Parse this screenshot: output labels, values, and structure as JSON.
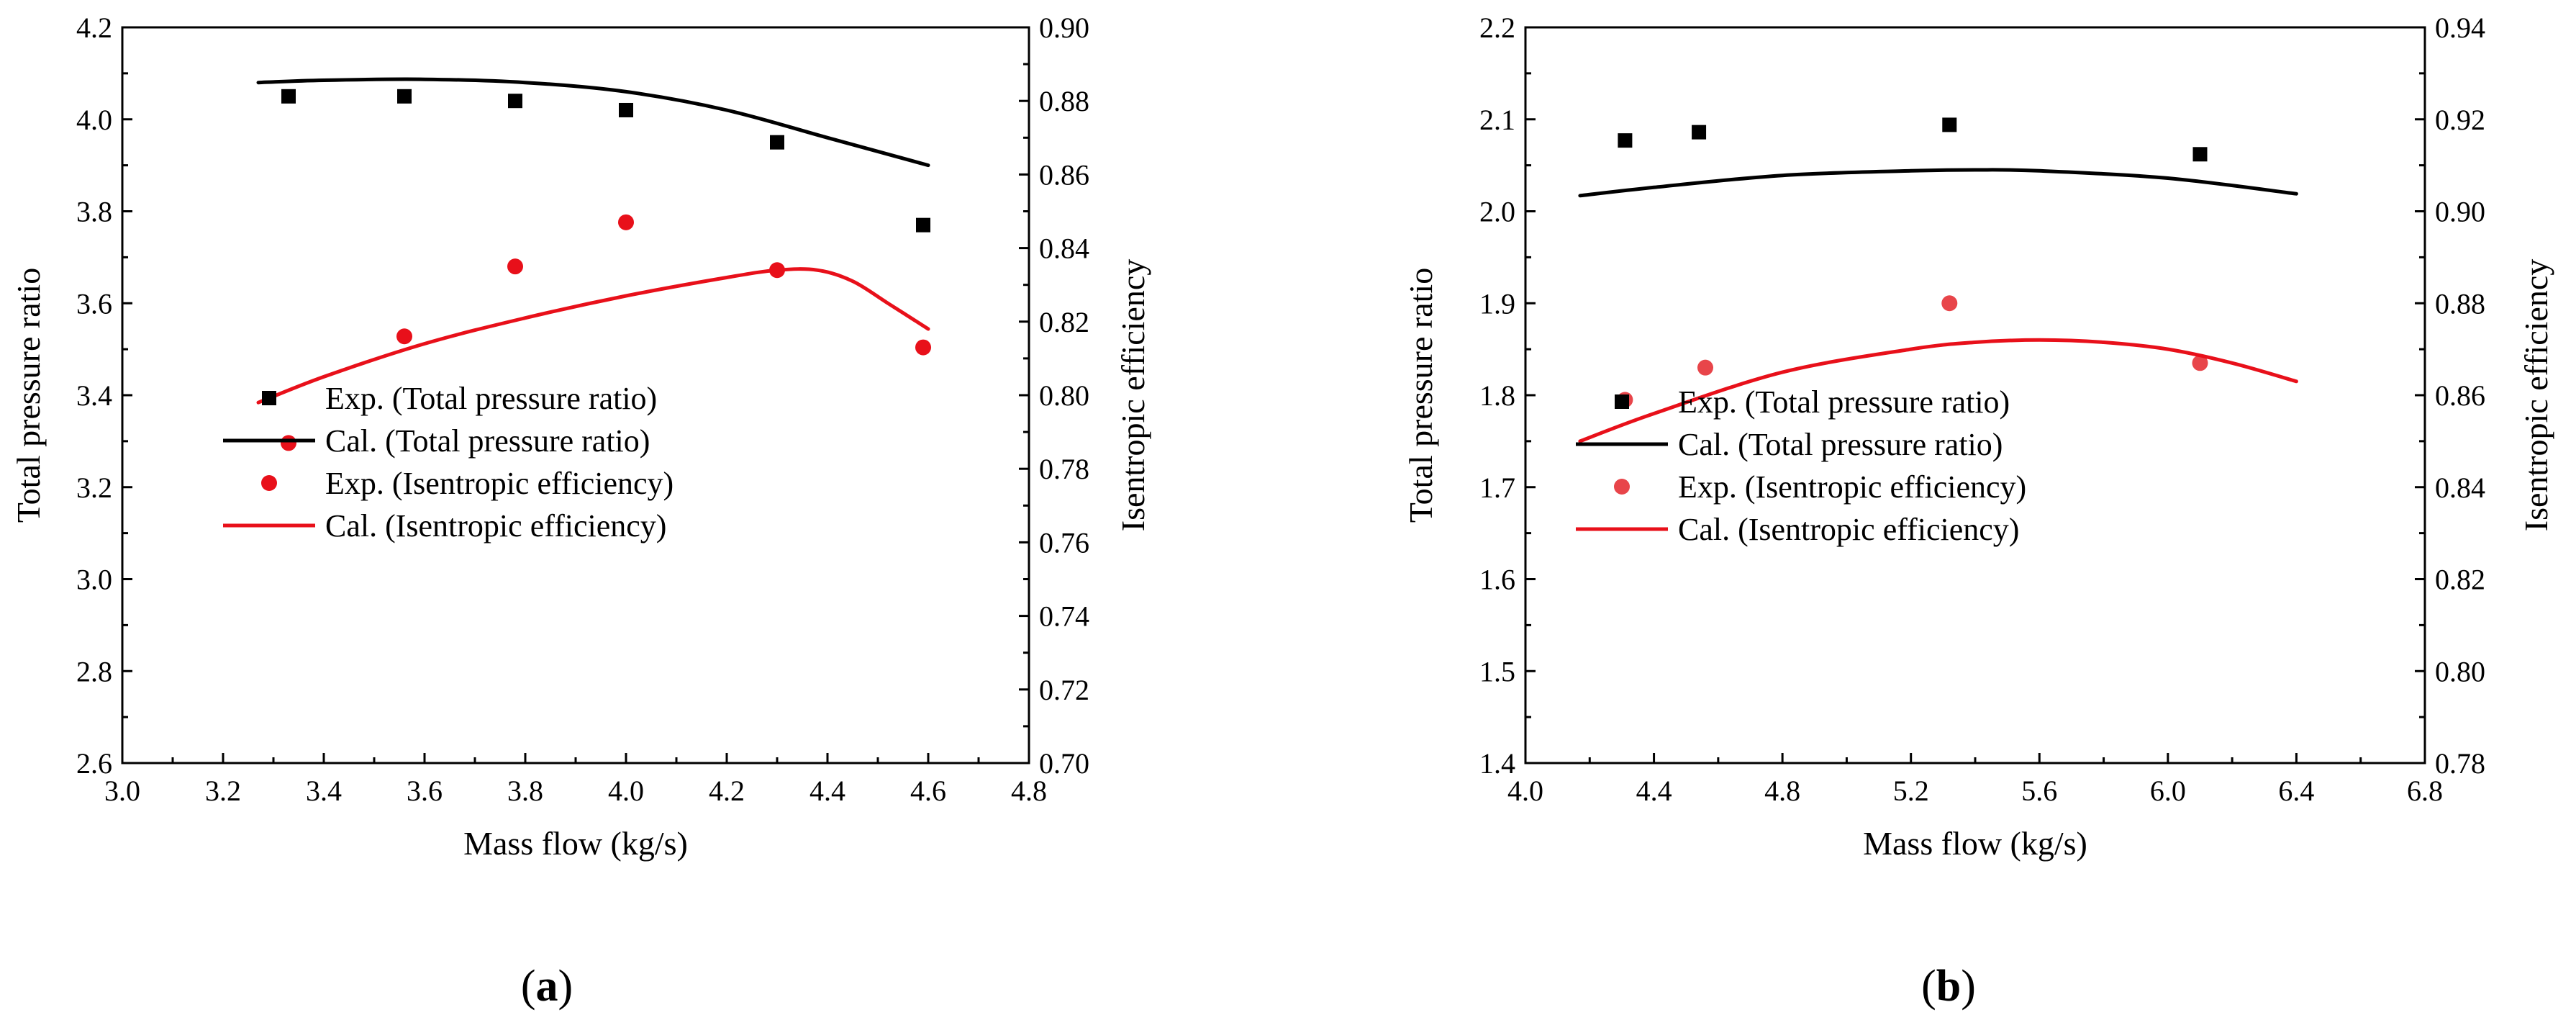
{
  "chart_data": [
    {
      "type": "line",
      "panel_label": "(a)",
      "xlabel": "Mass flow (kg/s)",
      "ylabel_left": "Total pressure ratio",
      "ylabel_right": "Isentropic efficiency",
      "xlim": [
        3.0,
        4.8
      ],
      "ylim_left": [
        2.6,
        4.2
      ],
      "ylim_right": [
        0.7,
        0.9
      ],
      "xticks": [
        "3.0",
        "3.2",
        "3.4",
        "3.6",
        "3.8",
        "4.0",
        "4.2",
        "4.4",
        "4.6",
        "4.8"
      ],
      "yticks_left": [
        "2.6",
        "2.8",
        "3.0",
        "3.2",
        "3.4",
        "3.6",
        "3.8",
        "4.0",
        "4.2"
      ],
      "yticks_right": [
        "0.70",
        "0.72",
        "0.74",
        "0.76",
        "0.78",
        "0.80",
        "0.82",
        "0.84",
        "0.86",
        "0.88",
        "0.90"
      ],
      "legend": [
        {
          "label": "Exp. (Total pressure ratio)",
          "marker": "square",
          "color": "#000000"
        },
        {
          "label": "Cal.  (Total pressure ratio)",
          "marker": "line",
          "color": "#000000"
        },
        {
          "label": "Exp. (Isentropic efficiency)",
          "marker": "circle",
          "color": "#e8101a"
        },
        {
          "label": "Cal.  (Isentropic efficiency)",
          "marker": "line",
          "color": "#e8101a"
        }
      ],
      "series": [
        {
          "name": "Exp. (Total pressure ratio)",
          "axis": "left",
          "kind": "scatter",
          "marker": "square",
          "color": "#000000",
          "x": [
            3.33,
            3.56,
            3.78,
            4.0,
            4.3,
            4.59
          ],
          "y": [
            4.05,
            4.05,
            4.04,
            4.02,
            3.95,
            3.77
          ]
        },
        {
          "name": "Cal. (Total pressure ratio)",
          "axis": "left",
          "kind": "line",
          "color": "#000000",
          "x": [
            3.27,
            3.4,
            3.6,
            3.8,
            4.0,
            4.2,
            4.4,
            4.6
          ],
          "y": [
            4.08,
            4.085,
            4.087,
            4.08,
            4.06,
            4.02,
            3.96,
            3.9
          ]
        },
        {
          "name": "Exp. (Isentropic efficiency)",
          "axis": "right",
          "kind": "scatter",
          "marker": "circle",
          "color": "#e8101a",
          "x": [
            3.33,
            3.56,
            3.78,
            4.0,
            4.3,
            4.59
          ],
          "y": [
            0.787,
            0.816,
            0.835,
            0.847,
            0.834,
            0.813
          ]
        },
        {
          "name": "Cal. (Isentropic efficiency)",
          "axis": "right",
          "kind": "line",
          "color": "#e8101a",
          "x": [
            3.27,
            3.4,
            3.6,
            3.8,
            4.0,
            4.2,
            4.3,
            4.38,
            4.45,
            4.52,
            4.6
          ],
          "y": [
            0.798,
            0.805,
            0.814,
            0.821,
            0.827,
            0.832,
            0.834,
            0.834,
            0.831,
            0.825,
            0.818
          ]
        }
      ]
    },
    {
      "type": "line",
      "panel_label": "(b)",
      "xlabel": "Mass flow (kg/s)",
      "ylabel_left": "Total pressure ratio",
      "ylabel_right": "Isentropic efficiency",
      "xlim": [
        4.0,
        6.8
      ],
      "ylim_left": [
        1.4,
        2.2
      ],
      "ylim_right": [
        0.78,
        0.94
      ],
      "xticks": [
        "4.0",
        "4.4",
        "4.8",
        "5.2",
        "5.6",
        "6.0",
        "6.4",
        "6.8"
      ],
      "yticks_left": [
        "1.4",
        "1.5",
        "1.6",
        "1.7",
        "1.8",
        "1.9",
        "2.0",
        "2.1",
        "2.2"
      ],
      "yticks_right": [
        "0.78",
        "0.80",
        "0.82",
        "0.84",
        "0.86",
        "0.88",
        "0.90",
        "0.92",
        "0.94"
      ],
      "legend": [
        {
          "label": "Exp. (Total pressure ratio)",
          "marker": "square",
          "color": "#000000"
        },
        {
          "label": "Cal.  (Total pressure ratio)",
          "marker": "line",
          "color": "#000000"
        },
        {
          "label": "Exp. (Isentropic efficiency)",
          "marker": "circle",
          "color": "#e8454a"
        },
        {
          "label": "Cal.  (Isentropic efficiency)",
          "marker": "line",
          "color": "#e8101a"
        }
      ],
      "series": [
        {
          "name": "Exp. (Total pressure ratio)",
          "axis": "left",
          "kind": "scatter",
          "marker": "square",
          "color": "#000000",
          "x": [
            4.31,
            4.54,
            5.32,
            6.1
          ],
          "y": [
            2.077,
            2.086,
            2.094,
            2.062
          ]
        },
        {
          "name": "Cal. (Total pressure ratio)",
          "axis": "left",
          "kind": "line",
          "color": "#000000",
          "x": [
            4.17,
            4.4,
            4.8,
            5.2,
            5.4,
            5.6,
            6.0,
            6.4
          ],
          "y": [
            2.017,
            2.026,
            2.039,
            2.044,
            2.045,
            2.044,
            2.036,
            2.019
          ]
        },
        {
          "name": "Exp. (Isentropic efficiency)",
          "axis": "right",
          "kind": "scatter",
          "marker": "circle",
          "color": "#e8454a",
          "x": [
            4.31,
            4.56,
            5.32,
            6.1
          ],
          "y": [
            0.859,
            0.866,
            0.88,
            0.867
          ]
        },
        {
          "name": "Cal. (Isentropic efficiency)",
          "axis": "right",
          "kind": "line",
          "color": "#e8101a",
          "x": [
            4.17,
            4.4,
            4.8,
            5.2,
            5.4,
            5.6,
            5.8,
            6.0,
            6.2,
            6.4
          ],
          "y": [
            0.85,
            0.856,
            0.865,
            0.87,
            0.8715,
            0.872,
            0.8715,
            0.87,
            0.867,
            0.863
          ]
        }
      ]
    }
  ]
}
